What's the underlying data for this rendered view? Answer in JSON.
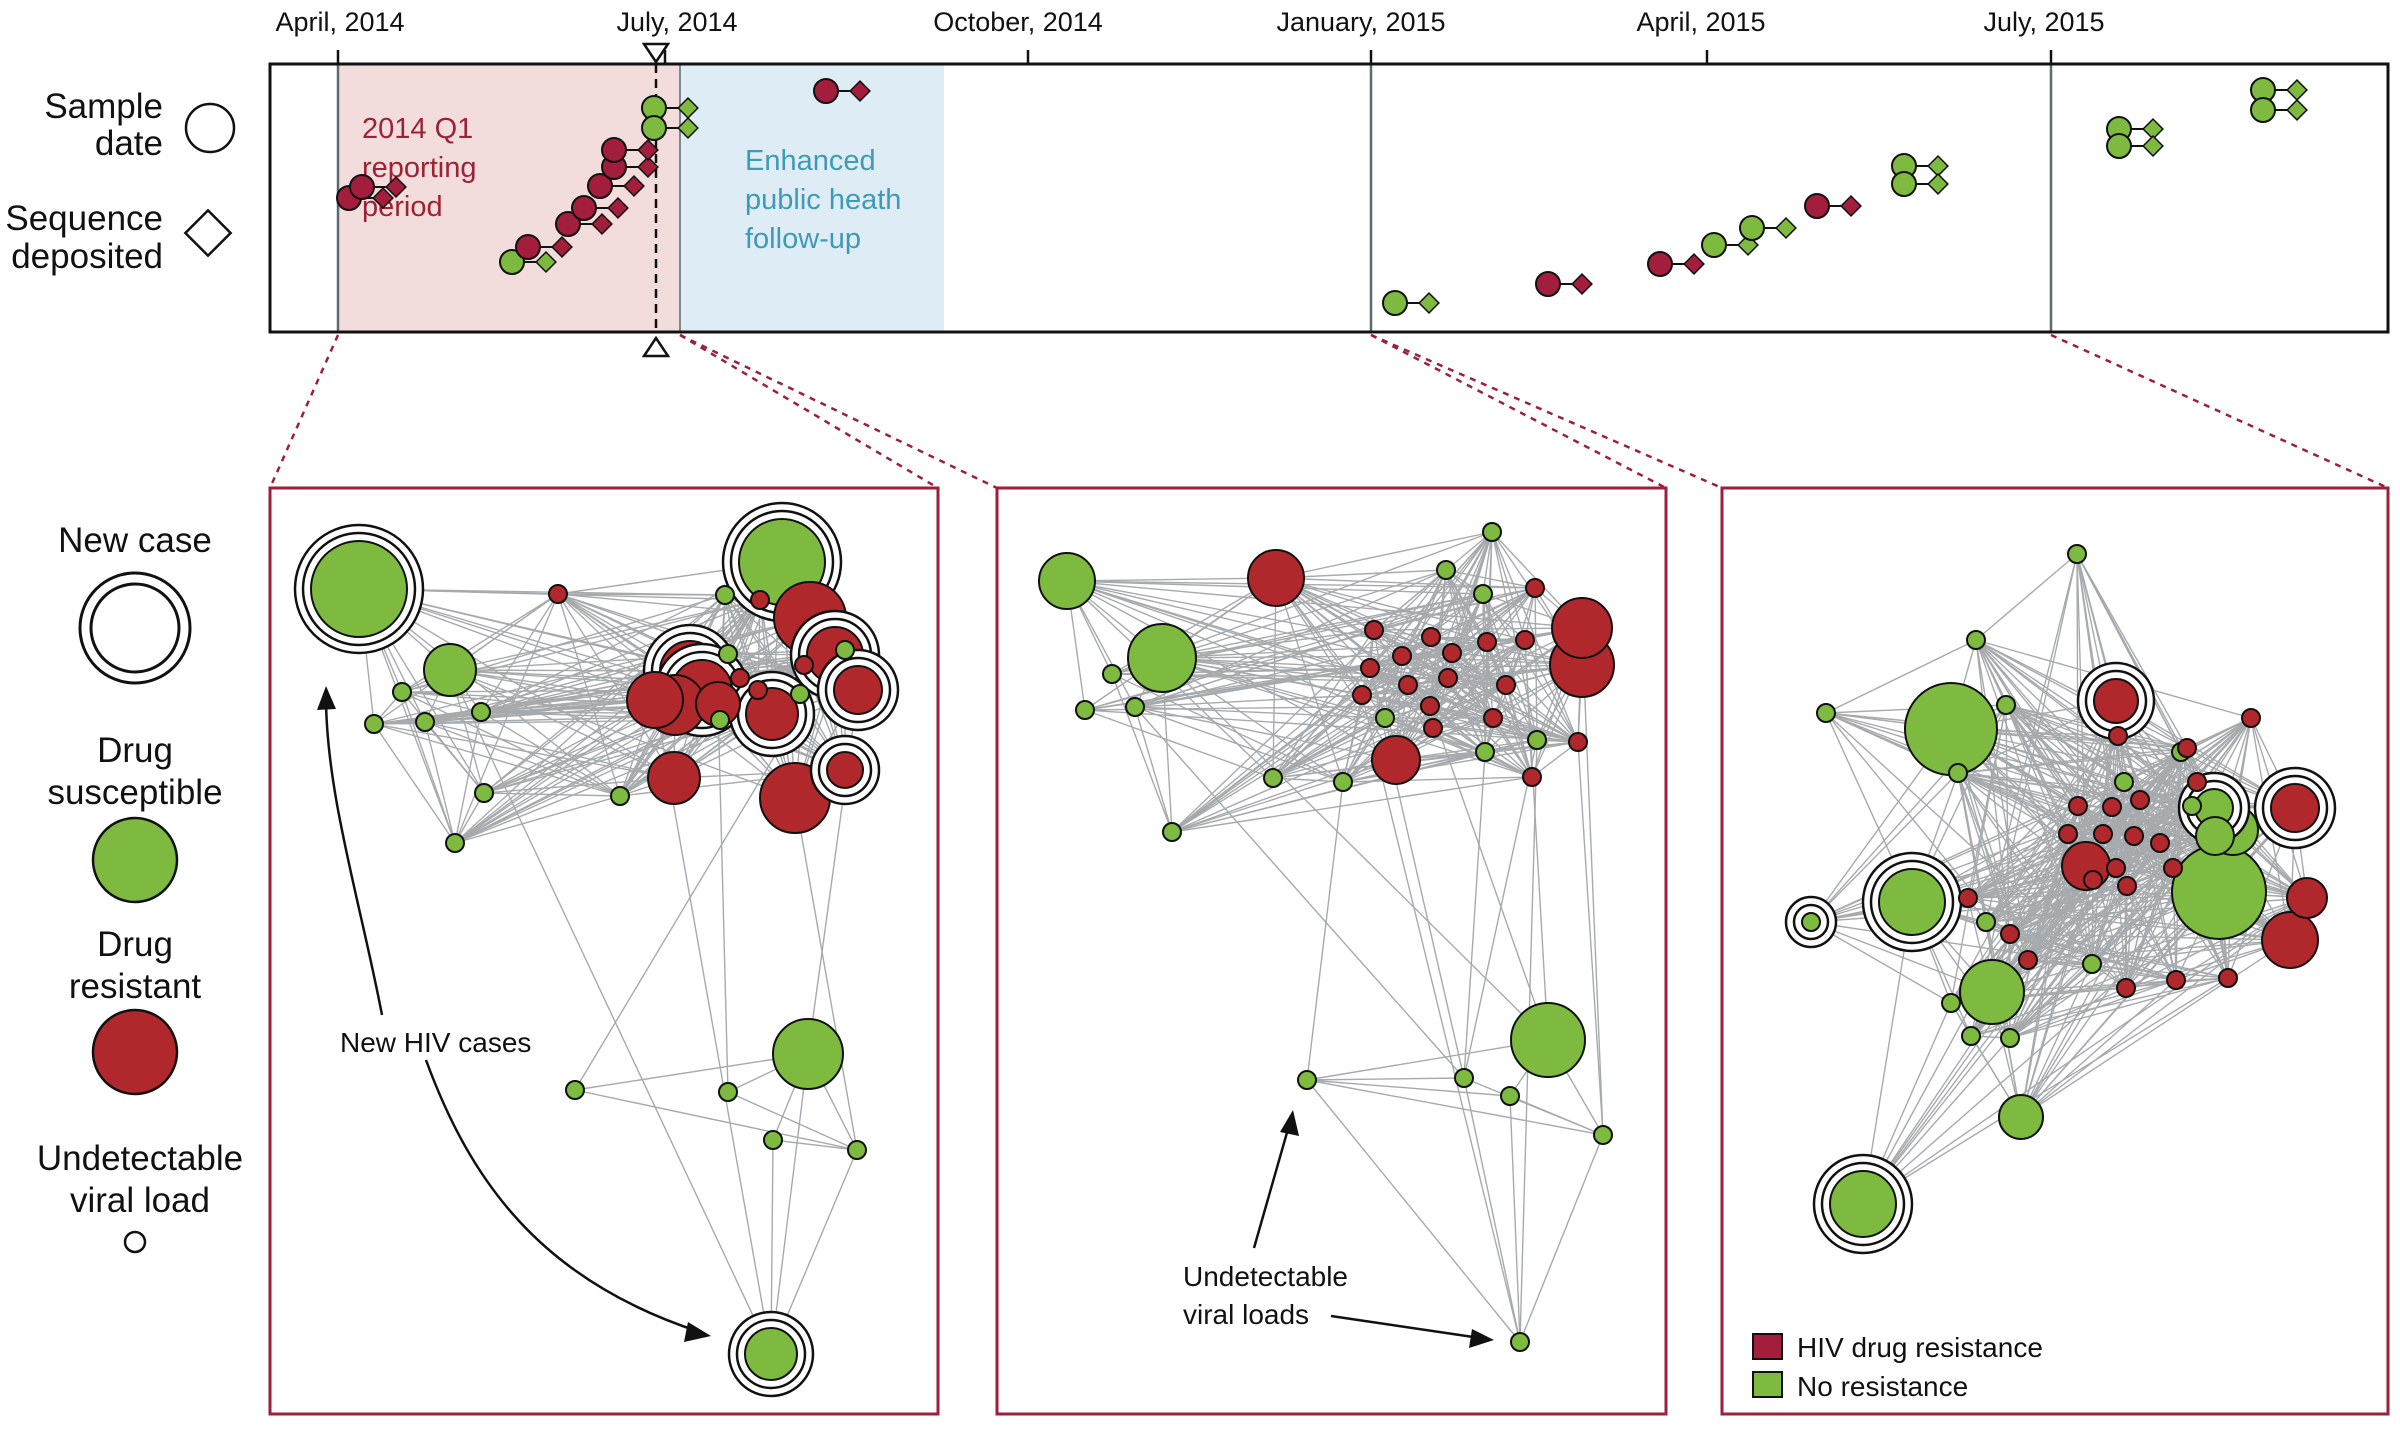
{
  "colors": {
    "resistant": "#b0282c",
    "resistant_dark": "#a31d3c",
    "susceptible": "#7dba3f",
    "edge": "#a7aaad",
    "panel_border": "#9e1f3a",
    "q1_fill": "#f2dcdc",
    "q1_text": "#9b2335",
    "enhanced_fill": "#deedf5",
    "enhanced_text": "#3f9ab5"
  },
  "legend": {
    "sample_date": [
      "Sample",
      "date"
    ],
    "sequence_deposited": [
      "Sequence",
      "deposited"
    ],
    "new_case": "New case",
    "drug_susceptible": [
      "Drug",
      "susceptible"
    ],
    "drug_resistant": [
      "Drug",
      "resistant"
    ],
    "undetectable": [
      "Undetectable",
      "viral load"
    ]
  },
  "timeline": {
    "ticks": [
      "April, 2014",
      "July, 2014",
      "October, 2014",
      "January, 2015",
      "April, 2015",
      "July, 2015"
    ],
    "q1_period": [
      "2014 Q1",
      "reporting",
      "period"
    ],
    "enhanced_period": [
      "Enhanced",
      "public heath",
      "follow-up"
    ],
    "events": [
      {
        "type": "resistant"
      },
      {
        "type": "resistant"
      },
      {
        "type": "susceptible"
      },
      {
        "type": "resistant"
      },
      {
        "type": "resistant"
      },
      {
        "type": "resistant"
      },
      {
        "type": "resistant"
      },
      {
        "type": "resistant"
      },
      {
        "type": "resistant"
      },
      {
        "type": "susceptible"
      },
      {
        "type": "susceptible"
      },
      {
        "type": "resistant"
      },
      {
        "type": "susceptible"
      },
      {
        "type": "resistant"
      },
      {
        "type": "resistant"
      },
      {
        "type": "susceptible"
      },
      {
        "type": "susceptible"
      },
      {
        "type": "resistant"
      },
      {
        "type": "susceptible"
      },
      {
        "type": "susceptible"
      },
      {
        "type": "susceptible"
      },
      {
        "type": "susceptible"
      },
      {
        "type": "susceptible"
      },
      {
        "type": "susceptible"
      }
    ]
  },
  "panels": [
    {
      "annotation": "New HIV cases"
    },
    {
      "annotation": [
        "Undetectable",
        "viral loads"
      ]
    },
    {
      "key": {
        "resistance": "HIV drug resistance",
        "none": "No resistance"
      }
    }
  ]
}
